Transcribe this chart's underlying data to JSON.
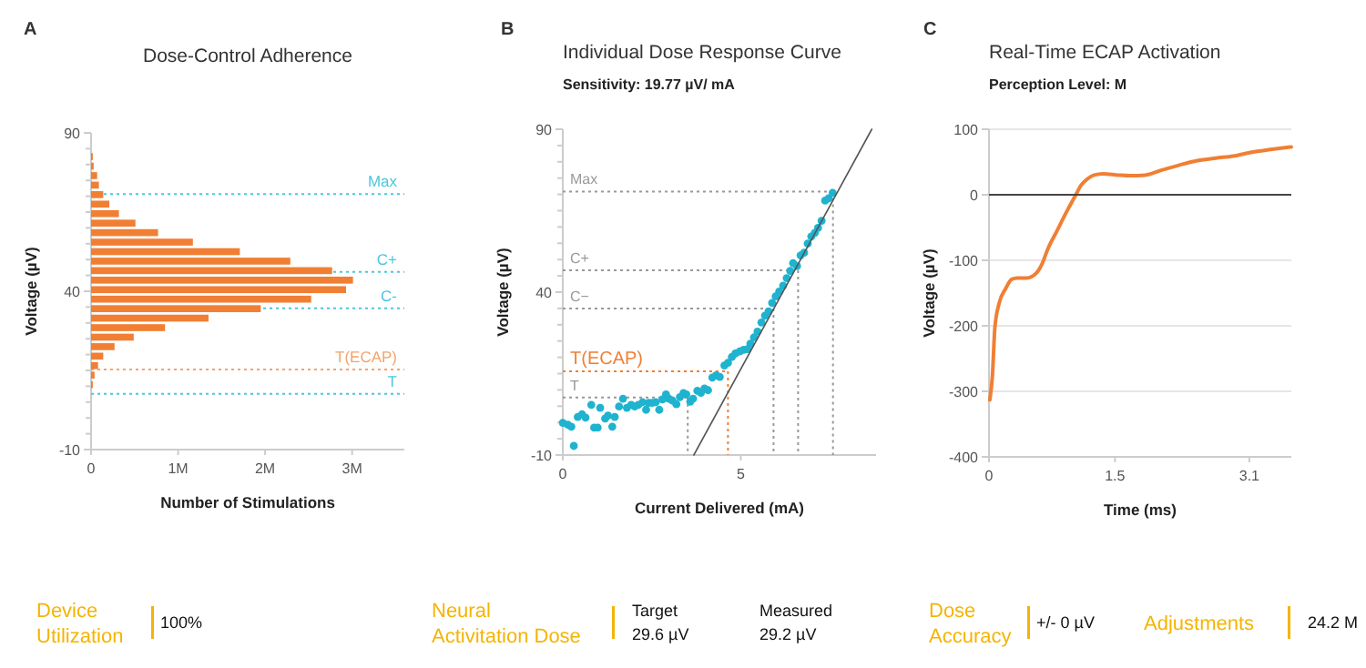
{
  "chart_data": [
    {
      "type": "histogram",
      "orientation": "horizontal",
      "title": "Dose-Control Adherence",
      "xlabel": "Number of Stimulations",
      "ylabel": "Voltage (µV)",
      "annotations": [
        "A"
      ],
      "color": "#f07f34",
      "bins": [
        9,
        12,
        15,
        18,
        21,
        24,
        27,
        30,
        33,
        36,
        39,
        42,
        45,
        48,
        51,
        54,
        57,
        60,
        63,
        66,
        69,
        72,
        75,
        78,
        81,
        84
      ],
      "values": [
        20000,
        40000,
        80000,
        140000,
        270000,
        490000,
        850000,
        1350000,
        1950000,
        2530000,
        2930000,
        3010000,
        2770000,
        2290000,
        1710000,
        1170000,
        770000,
        510000,
        320000,
        210000,
        140000,
        90000,
        70000,
        30000,
        20000
      ],
      "xlim": [
        0,
        3600000
      ],
      "xticks": [
        0,
        {
          "value": 1000000,
          "label": "1M"
        },
        {
          "value": 2000000,
          "label": "2M"
        },
        {
          "value": 3000000,
          "label": "3M"
        }
      ],
      "ylim": [
        -10,
        90
      ],
      "yticks": [
        -10,
        {
          "value": -5,
          "label": null
        },
        {
          "value": 0,
          "label": null
        },
        {
          "value": 5,
          "label": null
        },
        {
          "value": 10,
          "label": null
        },
        {
          "value": 15,
          "label": null
        },
        {
          "value": 20,
          "label": null
        },
        {
          "value": 25,
          "label": null
        },
        {
          "value": 30,
          "label": null
        },
        {
          "value": 35,
          "label": null
        },
        40,
        {
          "value": 45,
          "label": null
        },
        {
          "value": 50,
          "label": null
        },
        {
          "value": 55,
          "label": null
        },
        {
          "value": 60,
          "label": null
        },
        {
          "value": 65,
          "label": null
        },
        {
          "value": 70,
          "label": null
        },
        {
          "value": 75,
          "label": null
        },
        {
          "value": 80,
          "label": null
        },
        {
          "value": 85,
          "label": null
        },
        90
      ],
      "ref_lines": [
        {
          "axis": "y",
          "value": 70.7,
          "label": "Max",
          "color": "#4cc6dc",
          "line_style": "dotted"
        },
        {
          "axis": "y",
          "value": 46.1,
          "label": "C+",
          "color": "#4cc6dc",
          "line_style": "dotted"
        },
        {
          "axis": "y",
          "value": 34.6,
          "label": "C-",
          "color": "#4cc6dc",
          "line_style": "dotted"
        },
        {
          "axis": "y",
          "value": 15.3,
          "label": "T(ECAP)",
          "color": "#f4a36b",
          "line_style": "dotted"
        },
        {
          "axis": "y",
          "value": 7.6,
          "label": "T",
          "color": "#4cc6dc",
          "line_style": "dotted"
        }
      ]
    },
    {
      "type": "scatter",
      "title": "Individual Dose Response Curve",
      "subtitle": "Sensitivity: 19.77 µV/ mA",
      "xlabel": "Current Delivered (mA)",
      "ylabel": "Voltage (µV)",
      "annotations": [
        "B"
      ],
      "series": [
        {
          "type": "scatter",
          "marker": "circle",
          "color": "#1fb3cf",
          "x": [
            0,
            0.14,
            0.24,
            0.31,
            0.42,
            0.54,
            0.64,
            0.8,
            0.88,
            0.98,
            1.05,
            1.19,
            1.27,
            1.39,
            1.46,
            1.58,
            1.69,
            1.8,
            1.92,
            2.02,
            2.12,
            2.24,
            2.34,
            2.41,
            2.51,
            2.61,
            2.71,
            2.8,
            2.9,
            2.98,
            3.08,
            3.19,
            3.29,
            3.39,
            3.47,
            3.58,
            3.66,
            3.78,
            3.88,
            3.98,
            4.08,
            4.2,
            4.31,
            4.41,
            4.54,
            4.64,
            4.75,
            4.85,
            4.97,
            5.08,
            5.19,
            5.27,
            5.37,
            5.47,
            5.58,
            5.68,
            5.78,
            5.88,
            5.98,
            6.08,
            6.19,
            6.29,
            6.39,
            6.47,
            6.58,
            6.68,
            6.78,
            6.88,
            6.98,
            7.08,
            7.17,
            7.27,
            7.37,
            7.47,
            7.58
          ],
          "values": [
            -0.1,
            -0.7,
            -1.3,
            -7.2,
            1.7,
            2.5,
            1.5,
            5.4,
            -1.6,
            -1.6,
            4.5,
            1.2,
            2.1,
            -1.3,
            1.7,
            4.9,
            7.3,
            4.5,
            5.4,
            4.9,
            5.4,
            6.2,
            3.9,
            6,
            6,
            6.2,
            3.9,
            7.1,
            8.6,
            7.3,
            6.7,
            5.6,
            7.8,
            9,
            8.6,
            6.4,
            7.3,
            9.7,
            9.1,
            10.4,
            9.9,
            13.8,
            14.5,
            14,
            17.5,
            18.3,
            20.1,
            21.2,
            21.8,
            22.3,
            22.5,
            24.2,
            26.1,
            27.9,
            30.7,
            32.8,
            34.1,
            36.7,
            38.7,
            40.2,
            42,
            44.3,
            46.5,
            48.9,
            48,
            51.3,
            52.1,
            54.9,
            57.1,
            58.2,
            59.7,
            61.9,
            68.1,
            68.8,
            70.5
          ]
        },
        {
          "type": "line",
          "color": "#555555",
          "x": [
            3.68,
            8.68
          ],
          "values": [
            -10,
            90
          ]
        }
      ],
      "xlim": [
        0,
        8.8
      ],
      "xticks": [
        0,
        5
      ],
      "ylim": [
        -10,
        90
      ],
      "yticks": [
        -10,
        {
          "value": -5,
          "label": null
        },
        {
          "value": 0,
          "label": null
        },
        {
          "value": 5,
          "label": null
        },
        {
          "value": 10,
          "label": null
        },
        {
          "value": 15,
          "label": null
        },
        {
          "value": 20,
          "label": null
        },
        {
          "value": 25,
          "label": null
        },
        {
          "value": 30,
          "label": null
        },
        {
          "value": 35,
          "label": null
        },
        40,
        {
          "value": 45,
          "label": null
        },
        {
          "value": 50,
          "label": null
        },
        {
          "value": 55,
          "label": null
        },
        {
          "value": 60,
          "label": null
        },
        {
          "value": 65,
          "label": null
        },
        {
          "value": 70,
          "label": null
        },
        {
          "value": 75,
          "label": null
        },
        {
          "value": 80,
          "label": null
        },
        {
          "value": 85,
          "label": null
        },
        90
      ],
      "ref_lines": [
        {
          "axis": "y",
          "value": 70.9,
          "label": "Max",
          "color": "#999999",
          "line_style": "dotted"
        },
        {
          "axis": "y",
          "value": 46.7,
          "label": "C+",
          "color": "#999999",
          "line_style": "dotted"
        },
        {
          "axis": "y",
          "value": 35,
          "label": "C−",
          "color": "#999999",
          "line_style": "dotted"
        },
        {
          "axis": "y",
          "value": 15.7,
          "label": "T(ECAP)",
          "color": "#f07f34",
          "line_style": "dotted"
        },
        {
          "axis": "y",
          "value": 7.7,
          "label": "T",
          "color": "#999999",
          "line_style": "dotted"
        },
        {
          "axis": "x",
          "value": 7.59,
          "color": "#999999",
          "line_style": "dotted"
        },
        {
          "axis": "x",
          "value": 6.61,
          "color": "#999999",
          "line_style": "dotted"
        },
        {
          "axis": "x",
          "value": 5.92,
          "color": "#999999",
          "line_style": "dotted"
        },
        {
          "axis": "x",
          "value": 4.64,
          "color": "#f07f34",
          "line_style": "dotted"
        },
        {
          "axis": "x",
          "value": 3.51,
          "color": "#999999",
          "line_style": "dotted"
        }
      ]
    },
    {
      "type": "line",
      "title": "Real-Time ECAP Activation",
      "subtitle": "Perception Level: M",
      "xlabel": "Time (ms)",
      "ylabel": "Voltage (µV)",
      "annotations": [
        "C"
      ],
      "grid": "y",
      "series": [
        {
          "color": "#f07f34",
          "x": [
            0.01,
            0.04,
            0.07,
            0.12,
            0.2,
            0.27,
            0.34,
            0.45,
            0.56,
            0.63,
            0.7,
            0.81,
            0.92,
            1.03,
            1.1,
            1.17,
            1.25,
            1.36,
            1.54,
            1.68,
            1.86,
            2.04,
            2.26,
            2.48,
            2.7,
            2.91,
            3.13,
            3.35,
            3.6
          ],
          "values": [
            -313,
            -278,
            -203,
            -166,
            -143,
            -129,
            -127,
            -127,
            -120,
            -106,
            -83,
            -55,
            -27,
            -1,
            15,
            24,
            30,
            32,
            30,
            29,
            30,
            37,
            45,
            52,
            56,
            59,
            65,
            69,
            73
          ]
        }
      ],
      "xlim": [
        0,
        3.6
      ],
      "xticks": [
        0,
        1.5,
        3.1
      ],
      "ylim": [
        -400,
        100
      ],
      "yticks": [
        -400,
        -300,
        -200,
        -100,
        0,
        100
      ],
      "ref_lines": [
        {
          "axis": "y",
          "value": 0,
          "color": "#444444",
          "line_style": "solid"
        }
      ]
    },
    {
      "type": "other",
      "categories": [
        "Device Utilization",
        "Neural Activitation Dose",
        "Dose Accuracy",
        "Adjustments"
      ],
      "annotations": [
        "100%",
        "Target 29.6 µV",
        "Measured 29.2 µV",
        "+/- 0 µV",
        "24.2 M"
      ]
    }
  ]
}
